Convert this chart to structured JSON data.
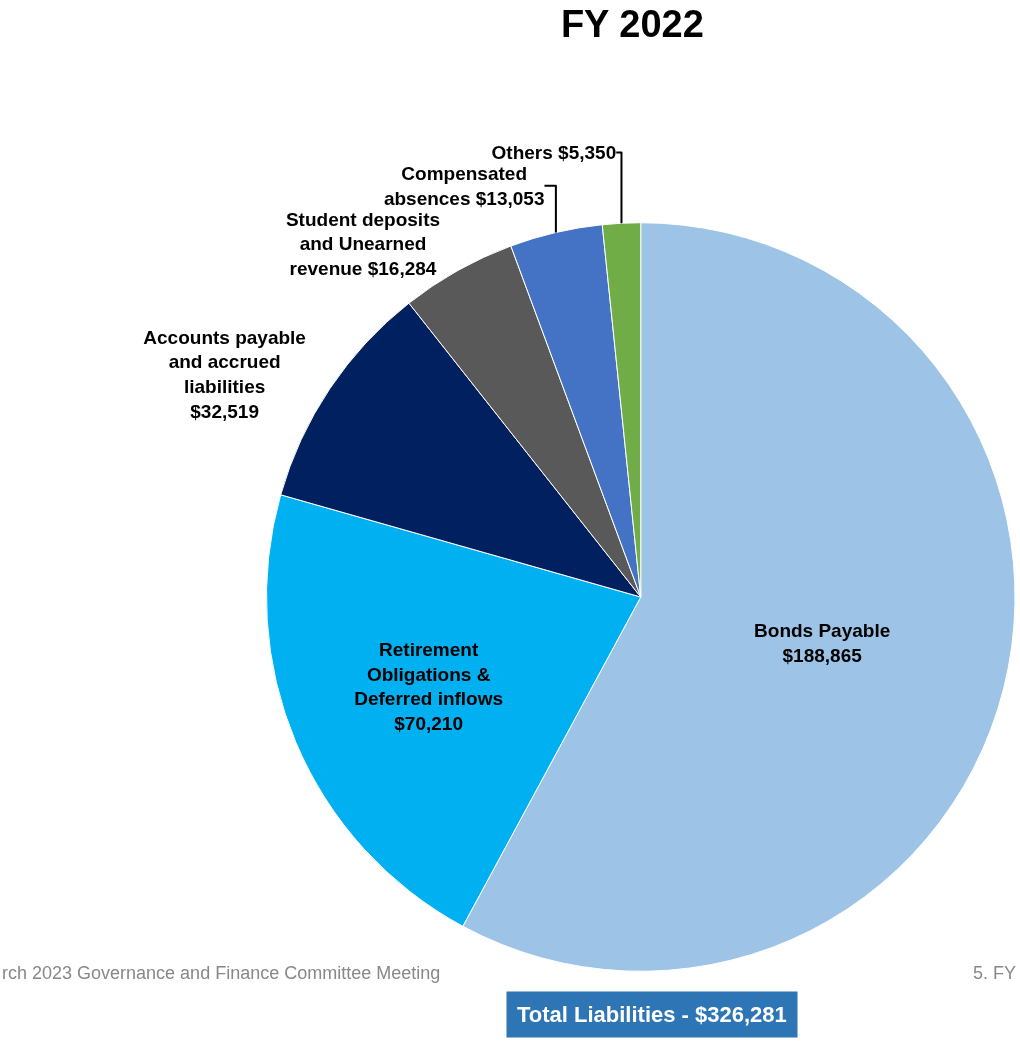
{
  "chart_data": {
    "type": "pie",
    "title": "FY 2022",
    "categories": [
      "Bonds Payable",
      "Retirement Obligations & Deferred inflows",
      "Accounts payable and accrued liabilities",
      "Student deposits and Unearned revenue",
      "Compensated absences",
      "Others"
    ],
    "values": [
      188865,
      70210,
      32519,
      16284,
      13053,
      5350
    ],
    "colors": [
      "#9dc3e6",
      "#00b0f0",
      "#002060",
      "#595959",
      "#4472c4",
      "#70ad47"
    ],
    "value_labels": [
      "$188,865",
      "$70,210",
      "$32,519",
      "$16,284",
      "$13,053",
      "$5,350"
    ],
    "annotations": [
      "Total Liabilities - $326,281",
      "rch 2023 Governance and Finance Committee Meeting",
      "5. FY"
    ],
    "legend": false
  }
}
